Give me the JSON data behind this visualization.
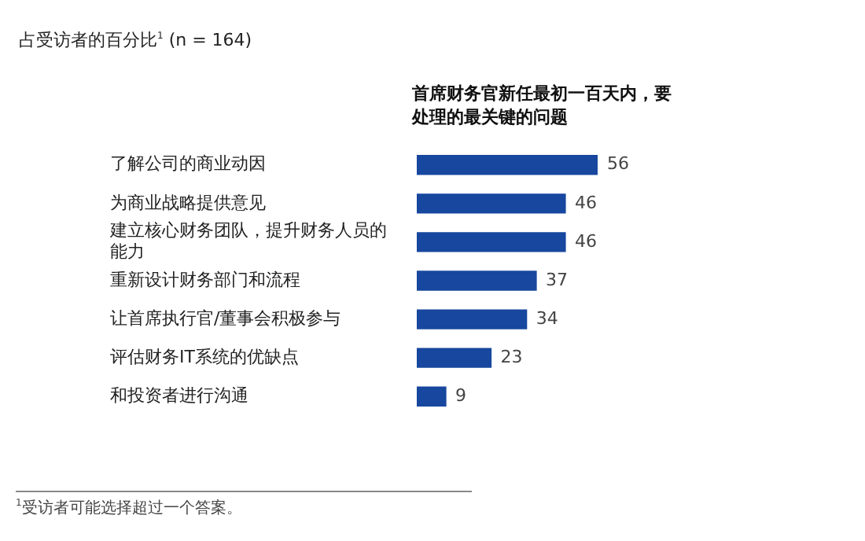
{
  "chart_data": {
    "type": "bar",
    "orientation": "horizontal",
    "title": "占受访者的百分比$^{1}$ (n = 164)",
    "subtitle": "首席财务官新任最初一百天内，要处理的最关键的问题",
    "categories": [
      "了解公司的商业动因",
      "为商业战略提供意见",
      "建立核心财务团队，提升财务人员的能力",
      "重新设计财务部门和流程",
      "让首席执行官/董事会积极参与",
      "评估财务IT系统的优缺点",
      "和投资者进行沟通"
    ],
    "values": [
      56,
      46,
      46,
      37,
      34,
      23,
      9
    ],
    "color": "#17479e",
    "data_labels": true,
    "annotations": [
      "$^{1}$受访者可能选择超过一个答案。"
    ]
  }
}
